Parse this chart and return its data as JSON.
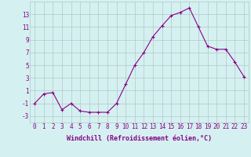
{
  "x": [
    0,
    1,
    2,
    3,
    4,
    5,
    6,
    7,
    8,
    9,
    10,
    11,
    12,
    13,
    14,
    15,
    16,
    17,
    18,
    19,
    20,
    21,
    22,
    23
  ],
  "y": [
    -1.0,
    0.5,
    0.7,
    -2.0,
    -1.0,
    -2.2,
    -2.4,
    -2.4,
    -2.4,
    -1.0,
    2.0,
    5.0,
    7.0,
    9.5,
    11.2,
    12.8,
    13.3,
    14.0,
    11.0,
    8.0,
    7.5,
    7.5,
    5.5,
    3.2
  ],
  "line_color": "#880088",
  "marker": "+",
  "marker_size": 3,
  "background_color": "#d5f0f0",
  "grid_color": "#b0c8c8",
  "xlabel": "Windchill (Refroidissement éolien,°C)",
  "ylim": [
    -4,
    15
  ],
  "xlim": [
    -0.5,
    23.5
  ],
  "yticks": [
    -3,
    -1,
    1,
    3,
    5,
    7,
    9,
    11,
    13
  ],
  "xticks": [
    0,
    1,
    2,
    3,
    4,
    5,
    6,
    7,
    8,
    9,
    10,
    11,
    12,
    13,
    14,
    15,
    16,
    17,
    18,
    19,
    20,
    21,
    22,
    23
  ],
  "tick_fontsize": 5.5,
  "xlabel_fontsize": 6.0
}
